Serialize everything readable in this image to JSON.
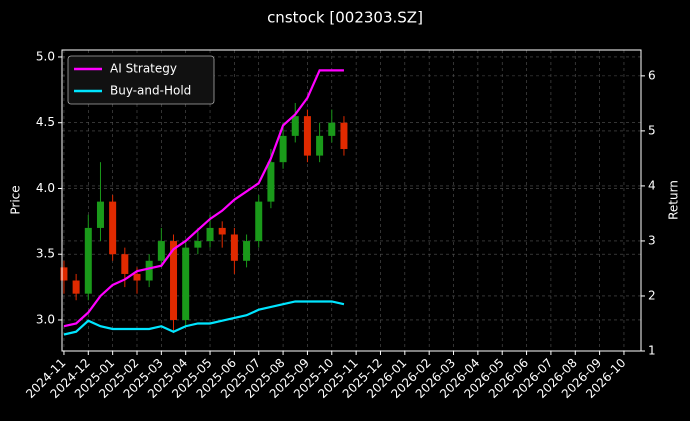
{
  "chart_data": {
    "type": "candlestick",
    "title": "cnstock [002303.SZ]",
    "ylabel": "Price",
    "y2label": "Return",
    "x": [
      0,
      0.5,
      1,
      1.5,
      2,
      2.5,
      3,
      3.5,
      4,
      4.5,
      5,
      5.5,
      6,
      6.5,
      7,
      7.5,
      8,
      8.5,
      9,
      9.5,
      10,
      10.5,
      11,
      11.5
    ],
    "open": [
      3.4,
      3.3,
      3.2,
      3.7,
      3.9,
      3.5,
      3.35,
      3.3,
      3.45,
      3.6,
      3.0,
      3.55,
      3.6,
      3.7,
      3.65,
      3.45,
      3.6,
      3.9,
      4.2,
      4.4,
      4.55,
      4.25,
      4.4,
      4.5
    ],
    "high": [
      3.45,
      3.35,
      3.8,
      4.2,
      3.95,
      3.55,
      3.4,
      3.5,
      3.7,
      3.65,
      3.6,
      3.7,
      3.8,
      3.75,
      3.7,
      3.65,
      3.95,
      4.3,
      4.5,
      4.65,
      4.6,
      4.5,
      4.6,
      4.55
    ],
    "low": [
      3.2,
      3.15,
      3.15,
      3.6,
      3.45,
      3.25,
      3.2,
      3.25,
      3.4,
      2.9,
      2.95,
      3.5,
      3.55,
      3.55,
      3.35,
      3.4,
      3.55,
      3.85,
      4.15,
      4.35,
      4.2,
      4.2,
      4.35,
      4.25
    ],
    "close": [
      3.3,
      3.2,
      3.7,
      3.9,
      3.5,
      3.35,
      3.3,
      3.45,
      3.6,
      3.0,
      3.55,
      3.6,
      3.7,
      3.65,
      3.45,
      3.6,
      3.9,
      4.2,
      4.4,
      4.55,
      4.25,
      4.4,
      4.5,
      4.3
    ],
    "up_color": "#1a9a1a",
    "down_color": "#e02a00",
    "series": [
      {
        "name": "AI Strategy",
        "color": "#ff00ff",
        "axis": "y2",
        "values": [
          1.45,
          1.5,
          1.7,
          2.0,
          2.2,
          2.3,
          2.45,
          2.5,
          2.55,
          2.85,
          3.0,
          3.2,
          3.4,
          3.55,
          3.75,
          3.9,
          4.05,
          4.5,
          5.1,
          5.3,
          5.6,
          6.1,
          6.1,
          6.1
        ]
      },
      {
        "name": "Buy-and-Hold",
        "color": "#00e5ff",
        "axis": "y2",
        "values": [
          1.3,
          1.35,
          1.55,
          1.45,
          1.4,
          1.4,
          1.4,
          1.4,
          1.45,
          1.35,
          1.45,
          1.5,
          1.5,
          1.55,
          1.6,
          1.65,
          1.75,
          1.8,
          1.85,
          1.9,
          1.9,
          1.9,
          1.9,
          1.85
        ]
      }
    ],
    "xlim": [
      -0.08,
      23.7
    ],
    "xticks": [
      {
        "value": 0,
        "label": "2024-11"
      },
      {
        "value": 1,
        "label": "2024-12"
      },
      {
        "value": 2,
        "label": "2025-01"
      },
      {
        "value": 3,
        "label": "2025-02"
      },
      {
        "value": 4,
        "label": "2025-03"
      },
      {
        "value": 5,
        "label": "2025-04"
      },
      {
        "value": 6,
        "label": "2025-05"
      },
      {
        "value": 7,
        "label": "2025-06"
      },
      {
        "value": 8,
        "label": "2025-07"
      },
      {
        "value": 9,
        "label": "2025-08"
      },
      {
        "value": 10,
        "label": "2025-09"
      },
      {
        "value": 11,
        "label": "2025-10"
      },
      {
        "value": 12,
        "label": "2025-11"
      },
      {
        "value": 13,
        "label": "2025-12"
      },
      {
        "value": 14,
        "label": "2026-01"
      },
      {
        "value": 15,
        "label": "2026-02"
      },
      {
        "value": 16,
        "label": "2026-03"
      },
      {
        "value": 17,
        "label": "2026-04"
      },
      {
        "value": 18,
        "label": "2026-05"
      },
      {
        "value": 19,
        "label": "2026-06"
      },
      {
        "value": 20,
        "label": "2026-07"
      },
      {
        "value": 21,
        "label": "2026-08"
      },
      {
        "value": 22,
        "label": "2026-09"
      },
      {
        "value": 23,
        "label": "2026-10"
      }
    ],
    "ylim": [
      2.764,
      5.053
    ],
    "yticks": [
      {
        "value": 3,
        "label": "3.0"
      },
      {
        "value": 3.5,
        "label": "3.5"
      },
      {
        "value": 4,
        "label": "4.0"
      },
      {
        "value": 4.5,
        "label": "4.5"
      },
      {
        "value": 5,
        "label": "5.0"
      }
    ],
    "y2lim": [
      1,
      6.47
    ],
    "y2ticks": [
      1,
      2,
      3,
      4,
      5,
      6
    ],
    "grid": true,
    "legend": "upper left"
  }
}
